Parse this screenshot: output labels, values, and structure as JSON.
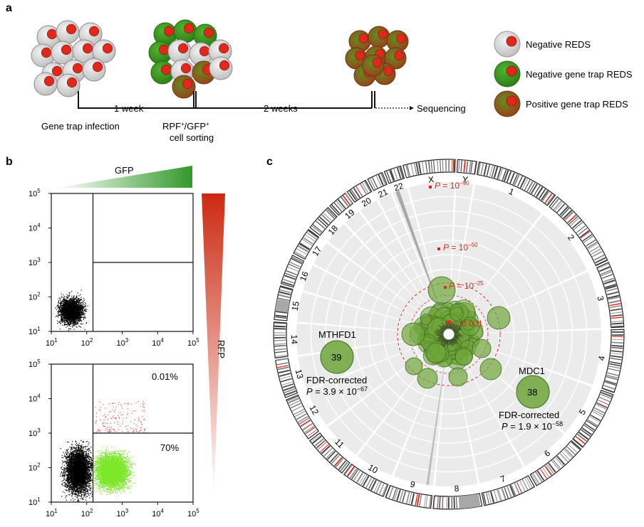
{
  "panel_a": {
    "letter": "a",
    "steps": [
      "Gene trap infection",
      "1 week",
      "RPF",
      "+",
      "/GFP",
      "+",
      "cell sorting",
      "2 weeks",
      "Sequencing"
    ],
    "legend": [
      "Negative REDS",
      "Negative gene trap REDS",
      "Positive gene trap REDS"
    ],
    "colors": {
      "negative_cell": "#d9d9d9",
      "nucleus": "#e0281c",
      "green_cell": "#3f9a22",
      "positive_cell": "#8a5a1c"
    }
  },
  "panel_b": {
    "letter": "b",
    "gfp_label": "GFP",
    "rfp_label": "RFP",
    "x_ticks": [
      "10",
      "10",
      "10",
      "10",
      "10"
    ],
    "x_exp": [
      "1",
      "2",
      "3",
      "4",
      "5"
    ],
    "y_ticks": [
      "10",
      "10",
      "10",
      "10",
      "10"
    ],
    "y_exp": [
      "1",
      "2",
      "3",
      "4",
      "5"
    ],
    "top_plot": {
      "gate_x": 150,
      "gate_y": 1000
    },
    "bottom_plot": {
      "gate_x": 150,
      "gate_y": 1000,
      "upper_right_pct": "0.01%",
      "lower_right_pct": "70%"
    },
    "colors": {
      "gfp": "#33992a",
      "rfp": "#cc2a12",
      "events": "#000000",
      "green_events": "#7de82a",
      "red_events": "#e05a4a"
    }
  },
  "panel_c": {
    "letter": "c",
    "chromosomes": [
      "1",
      "2",
      "3",
      "4",
      "5",
      "6",
      "7",
      "8",
      "9",
      "10",
      "11",
      "12",
      "13",
      "14",
      "15",
      "16",
      "17",
      "18",
      "19",
      "20",
      "21",
      "22",
      "X",
      "Y"
    ],
    "p_labels": [
      {
        "base": "P = 10",
        "exp": "−90"
      },
      {
        "base": "P = 10",
        "exp": "−50"
      },
      {
        "base": "P = 10",
        "exp": "−25"
      },
      {
        "base": "P = 0.001",
        "exp": ""
      }
    ],
    "hits": [
      {
        "gene": "MTHFD1",
        "count": "39",
        "fdr_label": "FDR-corrected",
        "p_base": "P = 3.9 × 10",
        "p_exp": "−67"
      },
      {
        "gene": "MDC1",
        "count": "38",
        "fdr_label": "FDR-corrected",
        "p_base": "P = 1.9 × 10",
        "p_exp": "−58"
      }
    ],
    "colors": {
      "bubble": "#6fa63a",
      "threshold": "#e0281c",
      "background": "#ebebeb"
    }
  }
}
